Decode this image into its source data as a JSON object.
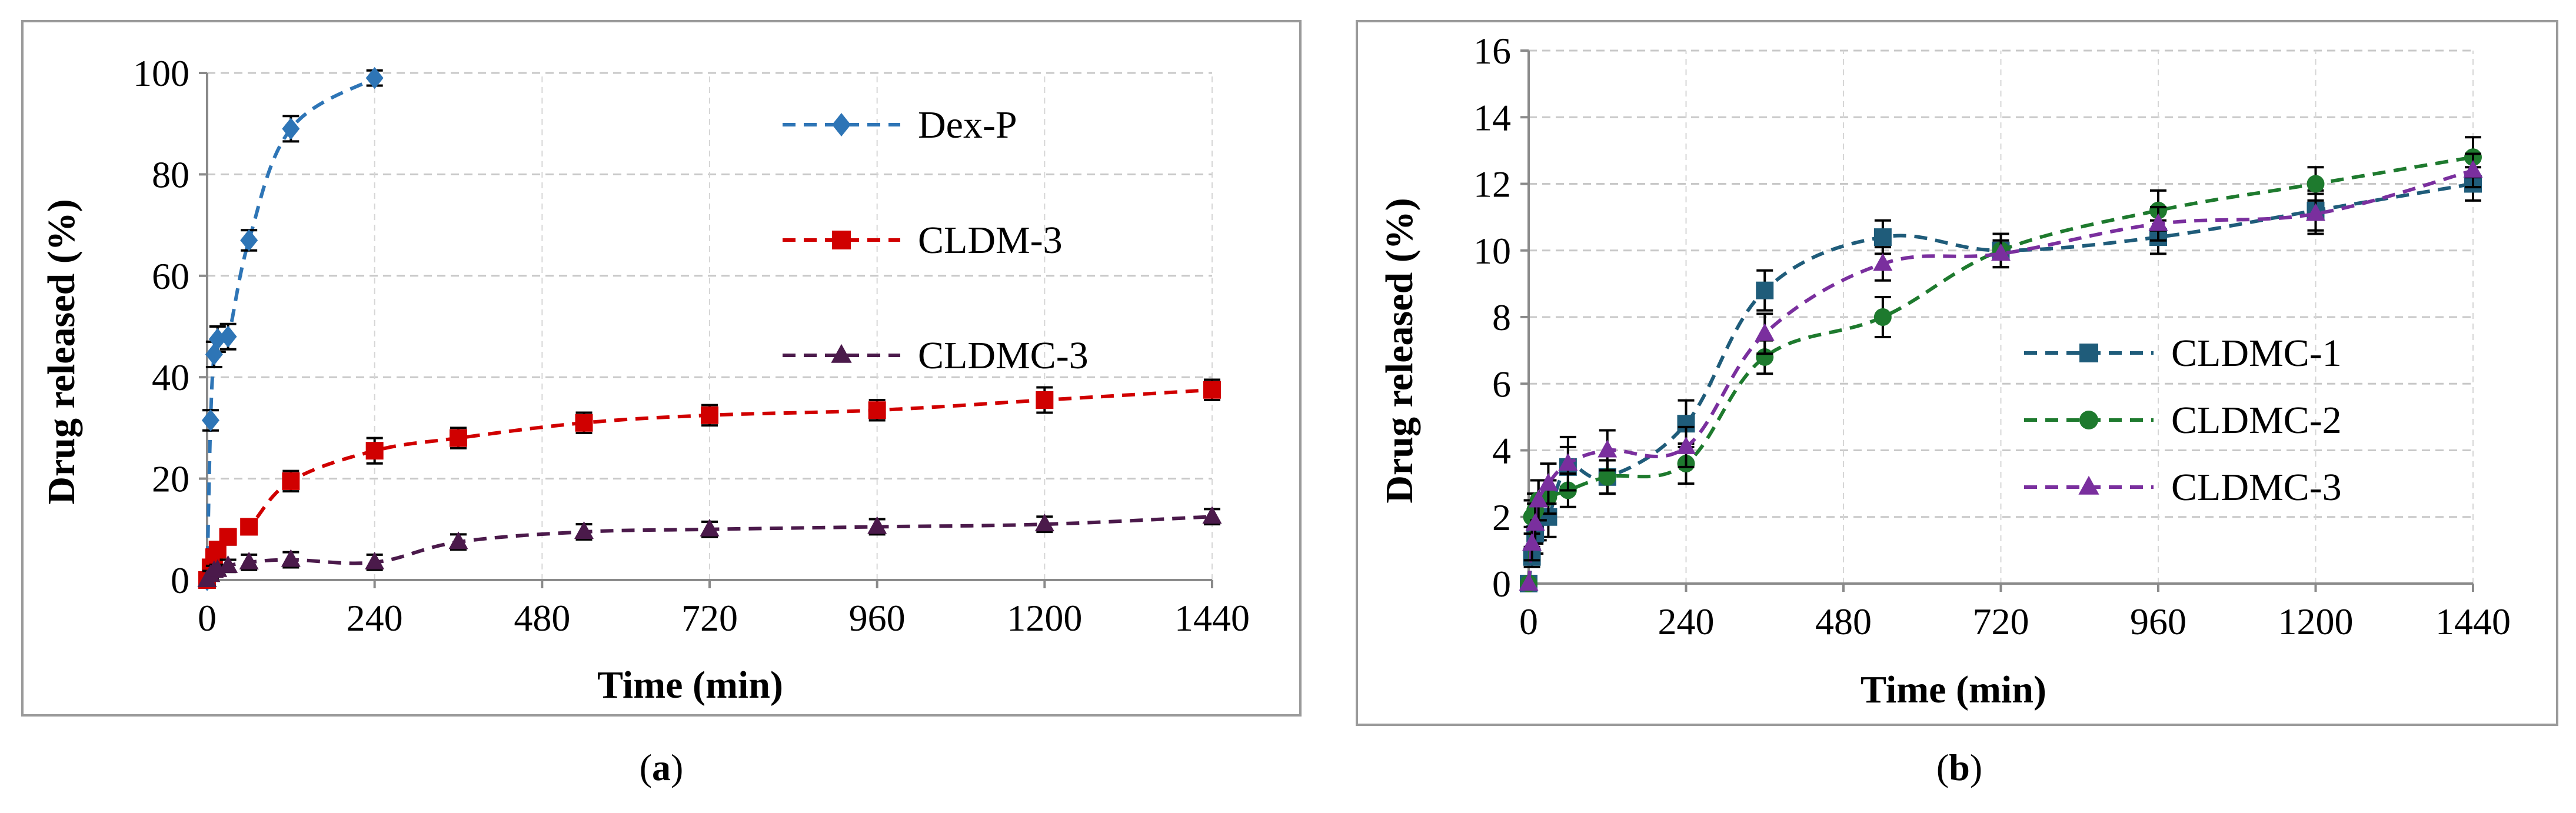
{
  "chart_data": [
    {
      "id": "a",
      "type": "line",
      "panel_label": "a",
      "xlabel": "Time (min)",
      "ylabel": "Drug released (%)",
      "xlim": [
        0,
        1440
      ],
      "ylim": [
        0,
        100
      ],
      "xticks": [
        0,
        240,
        480,
        720,
        960,
        1200,
        1440
      ],
      "yticks": [
        0,
        20,
        40,
        60,
        80,
        100
      ],
      "grid": true,
      "legend_position": "top-right",
      "series": [
        {
          "name": "Dex-P",
          "color": "#2E75B6",
          "marker": "diamond",
          "x": [
            0,
            5,
            10,
            15,
            30,
            60,
            120,
            240
          ],
          "y": [
            0,
            31.5,
            44.5,
            47.5,
            48,
            67,
            89,
            99
          ],
          "err": [
            0,
            2,
            2.5,
            2.5,
            2.5,
            2,
            2.5,
            1.5
          ]
        },
        {
          "name": "CLDM-3",
          "color": "#D00000",
          "marker": "square",
          "x": [
            0,
            5,
            10,
            15,
            30,
            60,
            120,
            240,
            360,
            540,
            720,
            960,
            1200,
            1440
          ],
          "y": [
            0,
            2.5,
            4.5,
            6,
            8.5,
            10.5,
            19.5,
            25.5,
            28,
            31,
            32.5,
            33.5,
            35.5,
            37.5
          ],
          "err": [
            0,
            1,
            1.5,
            1.5,
            1.5,
            1.5,
            2,
            2.5,
            2,
            2,
            2,
            2,
            2.5,
            2
          ]
        },
        {
          "name": "CLDMC-3",
          "color": "#4B1A4B",
          "marker": "triangle",
          "x": [
            0,
            5,
            10,
            15,
            30,
            60,
            120,
            240,
            360,
            540,
            720,
            960,
            1200,
            1440
          ],
          "y": [
            0,
            1,
            1.8,
            2,
            2.8,
            3.5,
            4,
            3.5,
            7.5,
            9.5,
            10,
            10.5,
            11,
            12.5
          ],
          "err": [
            0,
            0.8,
            1,
            1,
            1.2,
            1.5,
            1.5,
            1.5,
            1.5,
            1.5,
            1.5,
            1.5,
            1.5,
            1.5
          ]
        }
      ]
    },
    {
      "id": "b",
      "type": "line",
      "panel_label": "b",
      "xlabel": "Time (min)",
      "ylabel": "Drug released (%)",
      "xlim": [
        0,
        1440
      ],
      "ylim": [
        0,
        16
      ],
      "xticks": [
        0,
        240,
        480,
        720,
        960,
        1200,
        1440
      ],
      "yticks": [
        0,
        2,
        4,
        6,
        8,
        10,
        12,
        14,
        16
      ],
      "grid": true,
      "legend_position": "right",
      "series": [
        {
          "name": "CLDMC-1",
          "color": "#1F5C7A",
          "marker": "square",
          "x": [
            0,
            5,
            10,
            15,
            30,
            60,
            120,
            240,
            360,
            540,
            720,
            960,
            1200,
            1440
          ],
          "y": [
            0,
            0.8,
            1.5,
            2,
            2,
            3.5,
            3.2,
            4.8,
            8.8,
            10.4,
            10,
            10.4,
            11.2,
            12
          ],
          "err": [
            0,
            0.3,
            0.6,
            0.7,
            0.6,
            0.6,
            0.5,
            0.7,
            0.6,
            0.5,
            0.5,
            0.5,
            0.6,
            0.5
          ]
        },
        {
          "name": "CLDMC-2",
          "color": "#1E7A2E",
          "marker": "circle",
          "x": [
            0,
            5,
            10,
            15,
            30,
            60,
            120,
            240,
            360,
            540,
            720,
            960,
            1200,
            1440
          ],
          "y": [
            0,
            2,
            2.2,
            2.5,
            2.6,
            2.8,
            3.2,
            3.6,
            6.8,
            8,
            10,
            11.2,
            12,
            12.8
          ],
          "err": [
            0,
            0.5,
            0.5,
            0.6,
            0.5,
            0.5,
            0.5,
            0.6,
            0.5,
            0.6,
            0.5,
            0.6,
            0.5,
            0.6
          ]
        },
        {
          "name": "CLDMC-3",
          "color": "#7A2F9E",
          "marker": "triangle",
          "x": [
            0,
            5,
            10,
            15,
            30,
            60,
            120,
            240,
            360,
            540,
            720,
            960,
            1200,
            1440
          ],
          "y": [
            0,
            1.2,
            1.8,
            2.5,
            3,
            3.6,
            4,
            4.1,
            7.5,
            9.6,
            9.9,
            10.8,
            11.1,
            12.4
          ],
          "err": [
            0,
            0.5,
            0.6,
            0.6,
            0.6,
            0.8,
            0.6,
            0.6,
            0.6,
            0.5,
            0.4,
            0.5,
            0.6,
            0.5
          ]
        }
      ]
    }
  ]
}
